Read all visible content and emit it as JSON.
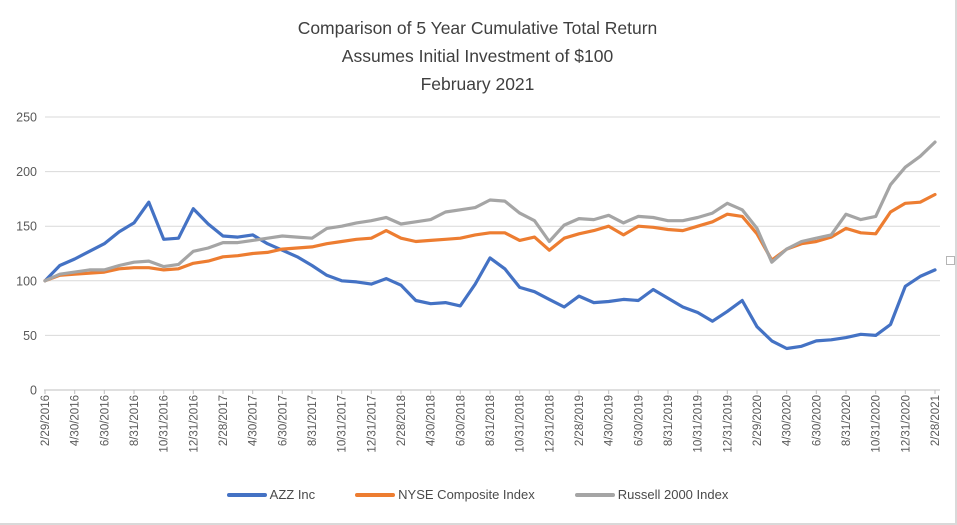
{
  "title": {
    "line1": "Comparison of 5 Year Cumulative Total Return",
    "line2": "Assumes Initial Investment of $100",
    "line3": "February 2021"
  },
  "chart_data": {
    "type": "line",
    "title": "Comparison of 5 Year Cumulative Total Return Assumes Initial Investment of $100 February 2021",
    "xlabel": "",
    "ylabel": "",
    "ylim": [
      0,
      250
    ],
    "y_ticks": [
      0,
      50,
      100,
      150,
      200,
      250
    ],
    "grid": "horizontal",
    "legend_position": "bottom",
    "points_per_label": 2,
    "x_labels": [
      "2/29/2016",
      "4/30/2016",
      "6/30/2016",
      "8/31/2016",
      "10/31/2016",
      "12/31/2016",
      "2/28/2017",
      "4/30/2017",
      "6/30/2017",
      "8/31/2017",
      "10/31/2017",
      "12/31/2017",
      "2/28/2018",
      "4/30/2018",
      "6/30/2018",
      "8/31/2018",
      "10/31/2018",
      "12/31/2018",
      "2/28/2019",
      "4/30/2019",
      "6/30/2019",
      "8/31/2019",
      "10/31/2019",
      "12/31/2019",
      "2/29/2020",
      "4/30/2020",
      "6/30/2020",
      "8/31/2020",
      "10/31/2020",
      "12/31/2020",
      "2/28/2021"
    ],
    "series": [
      {
        "name": "AZZ Inc",
        "color": "#4472C4",
        "values": [
          100,
          114,
          120,
          127,
          134,
          145,
          153,
          172,
          138,
          139,
          166,
          152,
          141,
          140,
          142,
          134,
          128,
          122,
          114,
          105,
          100,
          99,
          97,
          102,
          96,
          82,
          79,
          80,
          77,
          97,
          121,
          111,
          94,
          90,
          83,
          76,
          86,
          80,
          81,
          83,
          82,
          92,
          84,
          76,
          71,
          63,
          72,
          82,
          58,
          45,
          38,
          40,
          45,
          46,
          48,
          51,
          50,
          60,
          95,
          104,
          110
        ]
      },
      {
        "name": "NYSE Composite Index",
        "color": "#ED7D31",
        "values": [
          100,
          105,
          106,
          107,
          108,
          111,
          112,
          112,
          110,
          111,
          116,
          118,
          122,
          123,
          125,
          126,
          129,
          130,
          131,
          134,
          136,
          138,
          139,
          146,
          139,
          136,
          137,
          138,
          139,
          142,
          144,
          144,
          137,
          140,
          128,
          139,
          143,
          146,
          150,
          142,
          150,
          149,
          147,
          146,
          150,
          154,
          161,
          159,
          143,
          119,
          129,
          134,
          136,
          140,
          148,
          144,
          143,
          163,
          171,
          172,
          179
        ]
      },
      {
        "name": "Russell 2000 Index",
        "color": "#A5A5A5",
        "values": [
          100,
          106,
          108,
          110,
          110,
          114,
          117,
          118,
          113,
          115,
          127,
          130,
          135,
          135,
          137,
          139,
          141,
          140,
          139,
          148,
          150,
          153,
          155,
          158,
          152,
          154,
          156,
          163,
          165,
          167,
          174,
          173,
          162,
          155,
          136,
          151,
          157,
          156,
          160,
          153,
          159,
          158,
          155,
          155,
          158,
          162,
          171,
          165,
          148,
          117,
          129,
          136,
          139,
          142,
          161,
          156,
          159,
          188,
          204,
          214,
          227
        ]
      }
    ]
  }
}
